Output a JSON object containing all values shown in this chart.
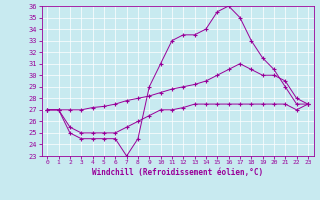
{
  "xlabel": "Windchill (Refroidissement éolien,°C)",
  "background_color": "#c8eaf0",
  "line_color": "#990099",
  "grid_color": "#aaaaaa",
  "xlim": [
    -0.5,
    23.5
  ],
  "ylim": [
    23,
    36
  ],
  "yticks": [
    23,
    24,
    25,
    26,
    27,
    28,
    29,
    30,
    31,
    32,
    33,
    34,
    35,
    36
  ],
  "xticks": [
    0,
    1,
    2,
    3,
    4,
    5,
    6,
    7,
    8,
    9,
    10,
    11,
    12,
    13,
    14,
    15,
    16,
    17,
    18,
    19,
    20,
    21,
    22,
    23
  ],
  "series": [
    {
      "x": [
        0,
        1,
        2,
        3,
        4,
        5,
        6,
        7,
        8,
        9,
        10,
        11,
        12,
        13,
        14,
        15,
        16,
        17,
        18,
        19,
        20,
        21,
        22,
        23
      ],
      "y": [
        27,
        27,
        25,
        24.5,
        24.5,
        24.5,
        24.5,
        23,
        24.5,
        29,
        31,
        33,
        33.5,
        33.5,
        34,
        35.5,
        36,
        35,
        33,
        31.5,
        30.5,
        29,
        27.5,
        27.5
      ]
    },
    {
      "x": [
        0,
        1,
        2,
        3,
        4,
        5,
        6,
        7,
        8,
        9,
        10,
        11,
        12,
        13,
        14,
        15,
        16,
        17,
        18,
        19,
        20,
        21,
        22,
        23
      ],
      "y": [
        27,
        27,
        27,
        27,
        27.2,
        27.3,
        27.5,
        27.8,
        28,
        28.2,
        28.5,
        28.8,
        29,
        29.2,
        29.5,
        30,
        30.5,
        31,
        30.5,
        30,
        30,
        29.5,
        28,
        27.5
      ]
    },
    {
      "x": [
        0,
        1,
        2,
        3,
        4,
        5,
        6,
        7,
        8,
        9,
        10,
        11,
        12,
        13,
        14,
        15,
        16,
        17,
        18,
        19,
        20,
        21,
        22,
        23
      ],
      "y": [
        27,
        27,
        25.5,
        25,
        25,
        25,
        25,
        25.5,
        26,
        26.5,
        27,
        27,
        27.2,
        27.5,
        27.5,
        27.5,
        27.5,
        27.5,
        27.5,
        27.5,
        27.5,
        27.5,
        27,
        27.5
      ]
    }
  ]
}
